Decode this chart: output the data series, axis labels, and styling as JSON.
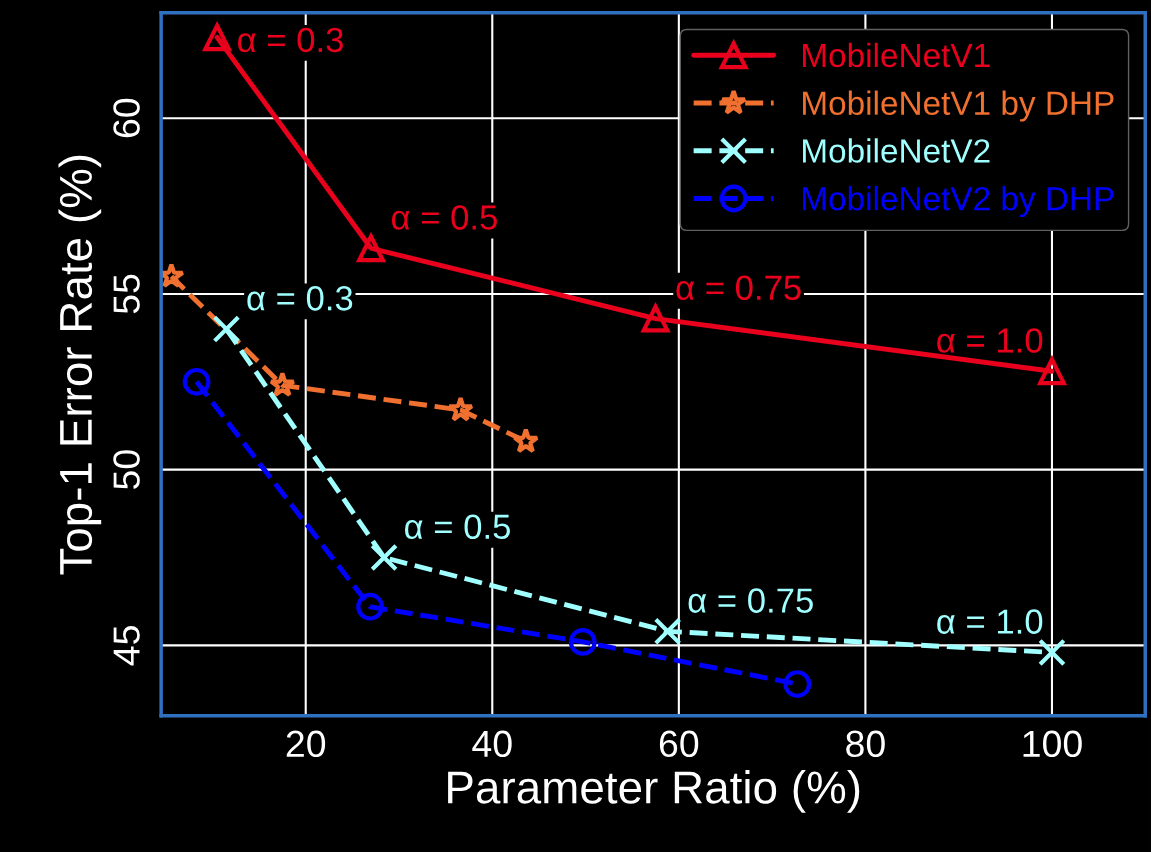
{
  "chart_data": {
    "type": "line",
    "xlabel": "Parameter Ratio (%)",
    "ylabel": "Top-1 Error Rate (%)",
    "xlim": [
      4.5,
      110
    ],
    "ylim": [
      43,
      63
    ],
    "xticks": [
      20,
      40,
      60,
      80,
      100
    ],
    "yticks": [
      45,
      50,
      55,
      60
    ],
    "grid": true,
    "legend": "top right",
    "series": [
      {
        "name": "MobileNetV1",
        "color": "#e8001c",
        "marker": "triangle",
        "line_style": "solid",
        "x": [
          10.5,
          27,
          57.5,
          100
        ],
        "values": [
          62.3,
          56.3,
          54.3,
          52.8
        ]
      },
      {
        "name": "MobileNetV1 by DHP",
        "color": "#f07030",
        "marker": "star",
        "line_style": "dashed",
        "x": [
          5.6,
          17.5,
          36.6,
          43.6
        ],
        "values": [
          55.5,
          52.4,
          51.7,
          50.8
        ]
      },
      {
        "name": "MobileNetV2",
        "color": "#a0ffff",
        "marker": "cross",
        "line_style": "dashed",
        "x": [
          11.5,
          28.4,
          58.8,
          100
        ],
        "values": [
          54.0,
          47.5,
          45.4,
          44.8
        ]
      },
      {
        "name": "MobileNetV2 by DHP",
        "color": "#0000ff",
        "marker": "circle",
        "line_style": "dashed",
        "x": [
          8.3,
          26.9,
          49.7,
          72.7
        ],
        "values": [
          52.5,
          46.1,
          45.1,
          43.9
        ]
      }
    ],
    "annotations": [
      {
        "text": "α = 0.3",
        "x": 10.5,
        "y": 62.3
      },
      {
        "text": "α = 0.5",
        "x": 27,
        "y": 56.3
      },
      {
        "text": "α = 0.75",
        "x": 57.5,
        "y": 54.3
      },
      {
        "text": "α = 1.0",
        "x": 100,
        "y": 52.8
      },
      {
        "text": "α = 0.3",
        "x": 11.5,
        "y": 54.0
      },
      {
        "text": "α = 0.5",
        "x": 28.4,
        "y": 47.5
      },
      {
        "text": "α = 0.75",
        "x": 58.8,
        "y": 45.4
      },
      {
        "text": "α = 1.0",
        "x": 100,
        "y": 44.8
      }
    ]
  }
}
